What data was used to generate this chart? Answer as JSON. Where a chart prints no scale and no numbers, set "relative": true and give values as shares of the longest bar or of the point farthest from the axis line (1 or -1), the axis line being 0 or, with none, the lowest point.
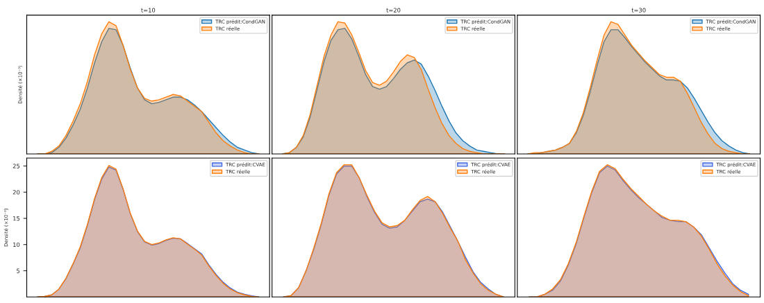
{
  "chart_data": [
    {
      "type": "area",
      "title": "t=10",
      "ylabel": "Densité (×10⁻³)",
      "relative": true,
      "tick_labels": false,
      "legend": "top right",
      "grid": false,
      "categories": [
        null,
        null,
        null,
        null,
        null,
        null,
        null,
        null,
        null,
        null,
        null,
        null,
        null,
        null,
        null,
        null,
        null,
        null,
        null,
        null,
        null,
        null,
        null,
        null,
        null,
        null,
        null,
        null,
        null,
        null,
        null,
        null
      ],
      "series": [
        {
          "name": "TRC prédit:CondGAN",
          "color": "#1f77b4",
          "values": [
            0,
            0,
            0.01,
            0.05,
            0.12,
            0.22,
            0.34,
            0.5,
            0.69,
            0.85,
            0.95,
            0.94,
            0.82,
            0.65,
            0.5,
            0.41,
            0.38,
            0.39,
            0.41,
            0.43,
            0.43,
            0.41,
            0.37,
            0.32,
            0.26,
            0.2,
            0.14,
            0.09,
            0.05,
            0.03,
            0.01,
            0
          ]
        },
        {
          "name": "TRC réelle",
          "color": "#ff7f0e",
          "values": [
            0,
            0,
            0.02,
            0.06,
            0.14,
            0.25,
            0.38,
            0.55,
            0.75,
            0.91,
            1,
            0.97,
            0.82,
            0.64,
            0.5,
            0.42,
            0.4,
            0.41,
            0.43,
            0.45,
            0.44,
            0.4,
            0.36,
            0.32,
            0.24,
            0.16,
            0.1,
            0.06,
            0.03,
            0.01,
            0,
            0
          ]
        }
      ]
    },
    {
      "type": "area",
      "title": "t=20",
      "relative": true,
      "tick_labels": false,
      "legend": "top right",
      "grid": false,
      "categories": [
        null,
        null,
        null,
        null,
        null,
        null,
        null,
        null,
        null,
        null,
        null,
        null,
        null,
        null,
        null,
        null,
        null,
        null,
        null,
        null,
        null,
        null,
        null,
        null,
        null,
        null,
        null,
        null,
        null,
        null,
        null,
        null,
        null
      ],
      "series": [
        {
          "name": "TRC prédit:CondGAN",
          "color": "#1f77b4",
          "values": [
            0,
            0.01,
            0.05,
            0.13,
            0.28,
            0.49,
            0.7,
            0.86,
            0.94,
            0.95,
            0.87,
            0.74,
            0.6,
            0.51,
            0.49,
            0.51,
            0.57,
            0.64,
            0.69,
            0.71,
            0.68,
            0.59,
            0.48,
            0.36,
            0.25,
            0.16,
            0.1,
            0.06,
            0.03,
            0.02,
            0.01,
            0,
            0
          ]
        },
        {
          "name": "TRC réelle",
          "color": "#ff7f0e",
          "values": [
            0,
            0.01,
            0.05,
            0.14,
            0.3,
            0.52,
            0.74,
            0.9,
            1,
            0.99,
            0.9,
            0.77,
            0.63,
            0.54,
            0.52,
            0.55,
            0.62,
            0.7,
            0.75,
            0.73,
            0.64,
            0.49,
            0.35,
            0.23,
            0.14,
            0.08,
            0.04,
            0.02,
            0.01,
            0,
            0,
            0,
            0
          ]
        }
      ]
    },
    {
      "type": "area",
      "title": "t=30",
      "relative": true,
      "tick_labels": false,
      "legend": "top right",
      "grid": false,
      "categories": [
        null,
        null,
        null,
        null,
        null,
        null,
        null,
        null,
        null,
        null,
        null,
        null,
        null,
        null,
        null,
        null,
        null,
        null,
        null,
        null,
        null,
        null,
        null,
        null,
        null,
        null,
        null,
        null,
        null,
        null,
        null,
        null,
        null
      ],
      "series": [
        {
          "name": "TRC prédit:CondGAN",
          "color": "#1f77b4",
          "values": [
            0,
            0,
            0.01,
            0.02,
            0.03,
            0.05,
            0.08,
            0.16,
            0.29,
            0.47,
            0.67,
            0.85,
            0.94,
            0.94,
            0.88,
            0.81,
            0.75,
            0.69,
            0.64,
            0.59,
            0.56,
            0.56,
            0.55,
            0.5,
            0.42,
            0.33,
            0.24,
            0.16,
            0.1,
            0.06,
            0.03,
            0.01,
            0
          ]
        },
        {
          "name": "TRC réelle",
          "color": "#ff7f0e",
          "values": [
            0,
            0.01,
            0.01,
            0.02,
            0.03,
            0.05,
            0.08,
            0.17,
            0.31,
            0.5,
            0.71,
            0.9,
            1,
            0.98,
            0.9,
            0.82,
            0.76,
            0.7,
            0.65,
            0.6,
            0.58,
            0.58,
            0.55,
            0.46,
            0.35,
            0.24,
            0.15,
            0.08,
            0.04,
            0.02,
            0.01,
            0,
            0
          ]
        }
      ]
    },
    {
      "type": "area",
      "ylabel": "Densité (×10⁻³)",
      "ylim": [
        0,
        26.5
      ],
      "yticks": [
        5,
        10,
        15,
        20,
        25
      ],
      "tick_labels": "y",
      "legend": "top right",
      "grid": false,
      "categories": [
        null,
        null,
        null,
        null,
        null,
        null,
        null,
        null,
        null,
        null,
        null,
        null,
        null,
        null,
        null,
        null,
        null,
        null,
        null,
        null,
        null,
        null,
        null,
        null,
        null,
        null,
        null,
        null,
        null,
        null,
        null,
        null
      ],
      "series": [
        {
          "name": "TRC prédit:CVAE",
          "color": "#4169e1",
          "values": [
            0,
            0.1,
            0.4,
            1.5,
            3.5,
            6.3,
            9.4,
            13.7,
            18.6,
            22.5,
            24.8,
            24.2,
            20.5,
            15.9,
            12.5,
            10.5,
            9.9,
            10.2,
            10.8,
            11.2,
            11.1,
            10.2,
            9.2,
            8.2,
            6.1,
            4.3,
            2.8,
            1.7,
            0.9,
            0.5,
            0.2,
            0
          ]
        },
        {
          "name": "TRC réelle",
          "color": "#ff7f0e",
          "values": [
            0,
            0.1,
            0.4,
            1.5,
            3.6,
            6.4,
            9.6,
            13.9,
            18.8,
            22.8,
            25.1,
            24.4,
            20.6,
            16.0,
            12.6,
            10.6,
            10.0,
            10.3,
            10.9,
            11.3,
            11.1,
            10.1,
            9.1,
            8.0,
            5.9,
            4.1,
            2.6,
            1.5,
            0.8,
            0.4,
            0.1,
            0
          ]
        }
      ]
    },
    {
      "type": "area",
      "relative": true,
      "tick_labels": false,
      "legend": "top right",
      "grid": false,
      "categories": [
        null,
        null,
        null,
        null,
        null,
        null,
        null,
        null,
        null,
        null,
        null,
        null,
        null,
        null,
        null,
        null,
        null,
        null,
        null,
        null,
        null,
        null,
        null,
        null,
        null,
        null,
        null,
        null,
        null,
        null
      ],
      "series": [
        {
          "name": "TRC prédit:CVAE",
          "color": "#4169e1",
          "values": [
            0,
            0.01,
            0.07,
            0.2,
            0.36,
            0.55,
            0.77,
            0.93,
            0.99,
            0.99,
            0.9,
            0.76,
            0.64,
            0.55,
            0.52,
            0.53,
            0.58,
            0.65,
            0.72,
            0.74,
            0.72,
            0.64,
            0.53,
            0.42,
            0.3,
            0.19,
            0.11,
            0.06,
            0.02,
            0
          ]
        },
        {
          "name": "TRC réelle",
          "color": "#ff7f0e",
          "values": [
            0,
            0.01,
            0.07,
            0.2,
            0.37,
            0.56,
            0.78,
            0.94,
            1,
            1.0,
            0.9,
            0.77,
            0.65,
            0.56,
            0.53,
            0.54,
            0.58,
            0.66,
            0.73,
            0.76,
            0.72,
            0.63,
            0.52,
            0.42,
            0.28,
            0.18,
            0.1,
            0.05,
            0.02,
            0
          ]
        }
      ]
    },
    {
      "type": "area",
      "relative": true,
      "tick_labels": false,
      "legend": "top right",
      "grid": false,
      "categories": [
        null,
        null,
        null,
        null,
        null,
        null,
        null,
        null,
        null,
        null,
        null,
        null,
        null,
        null,
        null,
        null,
        null,
        null,
        null,
        null,
        null,
        null,
        null,
        null,
        null,
        null,
        null,
        null,
        null
      ],
      "series": [
        {
          "name": "TRC prédit:CVAE",
          "color": "#4169e1",
          "values": [
            0,
            0,
            0.02,
            0.05,
            0.12,
            0.24,
            0.4,
            0.6,
            0.79,
            0.94,
            0.99,
            0.96,
            0.88,
            0.81,
            0.75,
            0.7,
            0.65,
            0.6,
            0.58,
            0.57,
            0.57,
            0.53,
            0.47,
            0.37,
            0.27,
            0.18,
            0.1,
            0.05,
            0.02
          ]
        },
        {
          "name": "TRC réelle",
          "color": "#ff7f0e",
          "values": [
            0,
            0,
            0.02,
            0.06,
            0.13,
            0.25,
            0.41,
            0.61,
            0.8,
            0.95,
            1,
            0.97,
            0.89,
            0.82,
            0.76,
            0.7,
            0.65,
            0.61,
            0.58,
            0.58,
            0.57,
            0.53,
            0.46,
            0.36,
            0.25,
            0.16,
            0.09,
            0.04,
            0.01
          ]
        }
      ]
    }
  ]
}
